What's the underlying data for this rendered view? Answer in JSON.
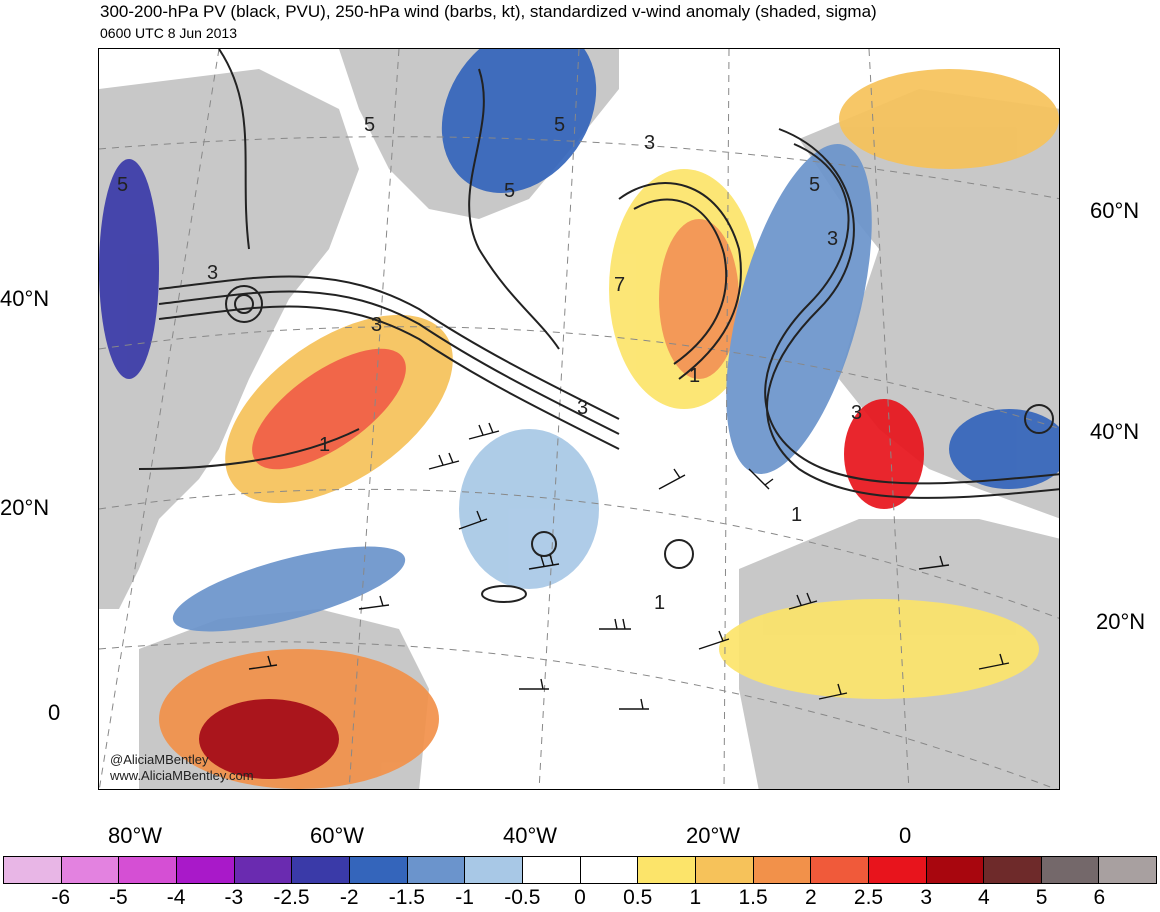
{
  "header": {
    "title": "300-200-hPa PV (black, PVU), 250-hPa wind (barbs, kt), standardized v-wind anomaly (shaded, sigma)",
    "subtitle": "0600 UTC 8 Jun 2013"
  },
  "credits": {
    "handle": "@AliciaMBentley",
    "website": "www.AliciaMBentley.com"
  },
  "lat_labels_left": [
    "40°N",
    "20°N",
    "0"
  ],
  "lat_labels_right": [
    "60°N",
    "40°N",
    "20°N"
  ],
  "lon_labels": [
    "80°W",
    "60°W",
    "40°W",
    "20°W",
    "0"
  ],
  "contour_labels": [
    "5",
    "3",
    "5",
    "5",
    "3",
    "5",
    "3",
    "7",
    "3",
    "5",
    "1",
    "3",
    "1",
    "1",
    "1",
    "3"
  ],
  "colorbar": {
    "colors": [
      "#e8b6e6",
      "#e382e0",
      "#d54fd4",
      "#a919c9",
      "#6a2bb0",
      "#3a3aa8",
      "#3465bb",
      "#6b94cc",
      "#a8c8e6",
      "#ffffff",
      "#ffffff",
      "#fce46a",
      "#f6c25a",
      "#f2914a",
      "#f05a3a",
      "#e8141c",
      "#a8060e",
      "#6e2a2a",
      "#74686a",
      "#a8a0a0"
    ],
    "labels": [
      "-6",
      "-5",
      "-4",
      "-3",
      "-2.5",
      "-2",
      "-1.5",
      "-1",
      "-0.5",
      "0",
      "0.5",
      "1",
      "1.5",
      "2",
      "2.5",
      "3",
      "4",
      "5",
      "6"
    ]
  },
  "land_color": "#c8c8c8"
}
